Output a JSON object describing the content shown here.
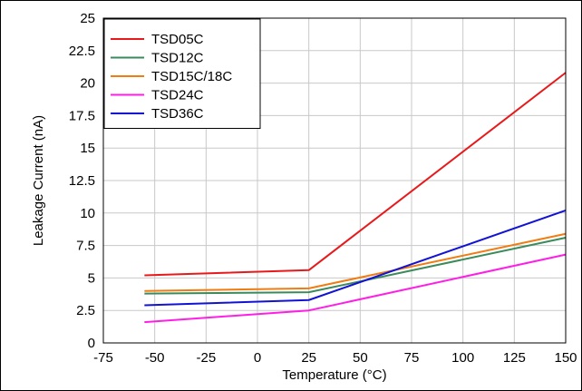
{
  "chart_data": {
    "type": "line",
    "xlabel": "Temperature (°C)",
    "ylabel": "Leakage Current (nA)",
    "xlim": [
      -75,
      150
    ],
    "ylim": [
      0,
      25
    ],
    "xticks": [
      -75,
      -50,
      -25,
      0,
      25,
      50,
      75,
      100,
      125,
      150
    ],
    "yticks": [
      0,
      2.5,
      5,
      7.5,
      10,
      12.5,
      15,
      17.5,
      20,
      22.5,
      25
    ],
    "xtick_labels": [
      "-75",
      "-50",
      "-25",
      "0",
      "25",
      "50",
      "75",
      "100",
      "125",
      "150"
    ],
    "ytick_labels": [
      "0",
      "2.5",
      "5",
      "7.5",
      "10",
      "12.5",
      "15",
      "17.5",
      "20",
      "22.5",
      "25"
    ],
    "grid": true,
    "legend_position": "top-left",
    "series": [
      {
        "name": "TSD05C",
        "color": "#e8191b",
        "x": [
          -55,
          25,
          150
        ],
        "y": [
          5.2,
          5.6,
          20.8
        ]
      },
      {
        "name": "TSD12C",
        "color": "#3a8a5c",
        "x": [
          -55,
          25,
          150
        ],
        "y": [
          3.8,
          3.9,
          8.1
        ]
      },
      {
        "name": "TSD15C/18C",
        "color": "#f07c12",
        "x": [
          -55,
          25,
          150
        ],
        "y": [
          4.0,
          4.2,
          8.4
        ]
      },
      {
        "name": "TSD24C",
        "color": "#ff1ee6",
        "x": [
          -55,
          25,
          150
        ],
        "y": [
          1.6,
          2.5,
          6.8
        ]
      },
      {
        "name": "TSD36C",
        "color": "#1212d6",
        "x": [
          -55,
          25,
          150
        ],
        "y": [
          2.9,
          3.3,
          10.2
        ]
      }
    ]
  }
}
